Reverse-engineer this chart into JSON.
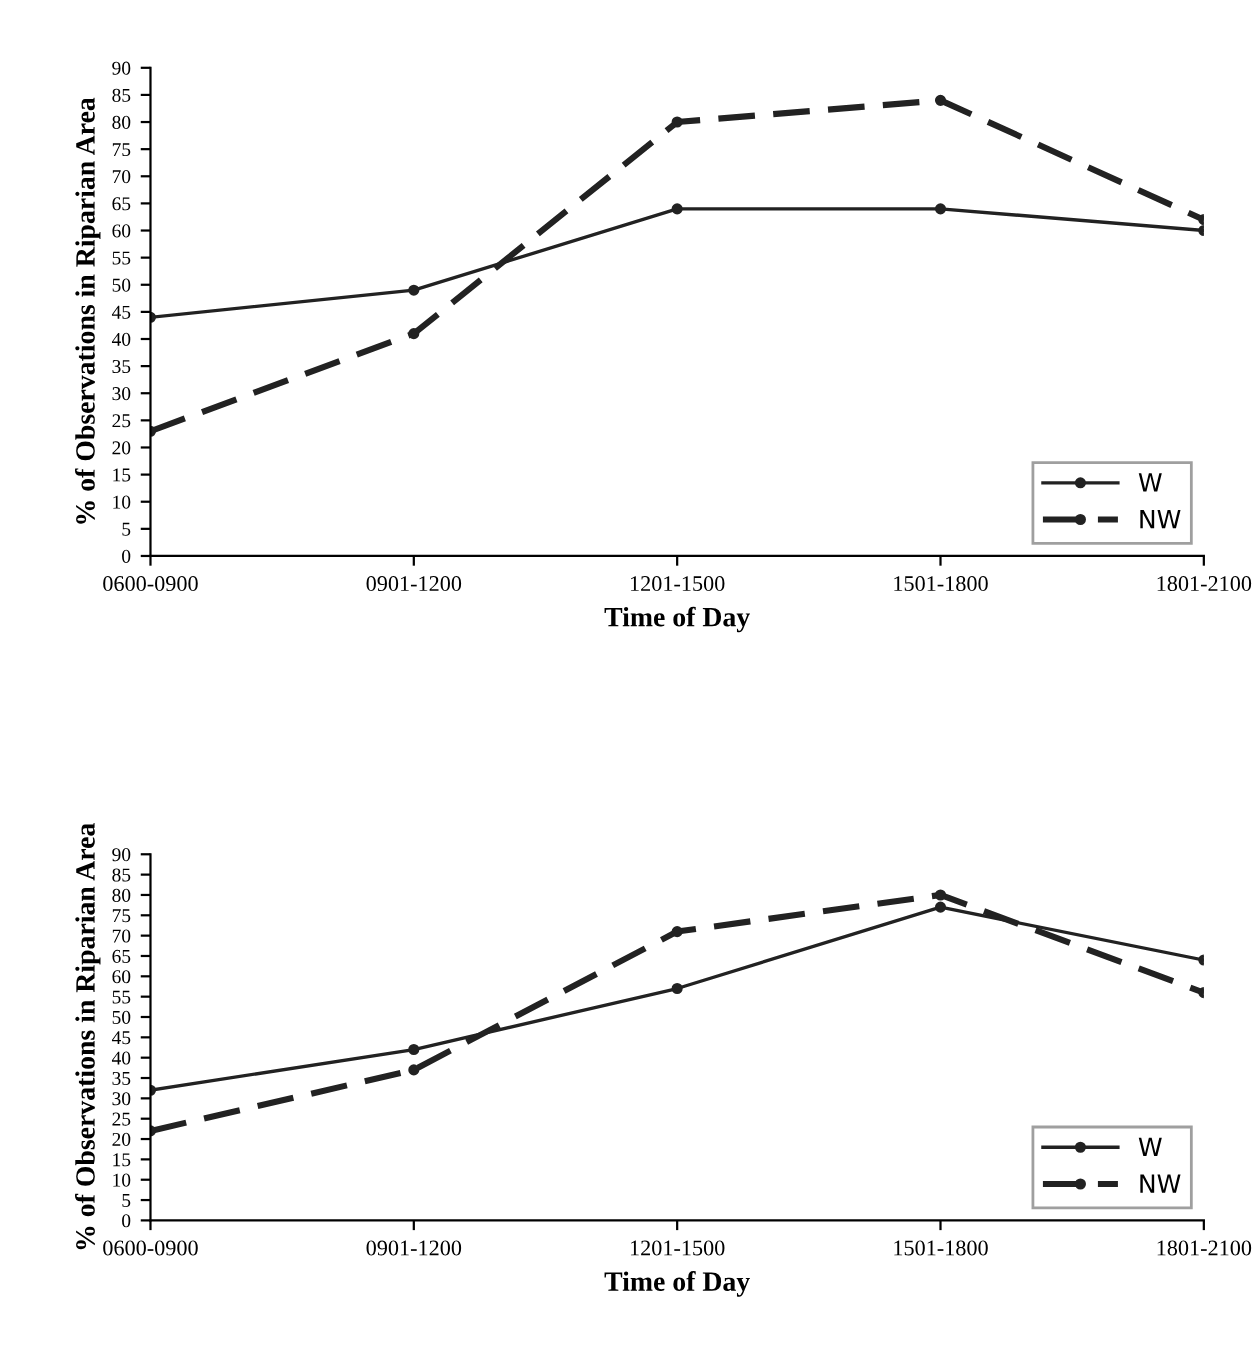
{
  "chart_data": [
    {
      "type": "line",
      "xlabel": "Time of Day",
      "ylabel": "% of Observations in Riparian Area",
      "categories": [
        "0600-0900",
        "0901-1200",
        "1201-1500",
        "1501-1800",
        "1801-2100"
      ],
      "ylim": [
        0,
        90
      ],
      "yticks": [
        0,
        5,
        10,
        15,
        20,
        25,
        30,
        35,
        40,
        45,
        50,
        55,
        60,
        65,
        70,
        75,
        80,
        85,
        90
      ],
      "grid": false,
      "legend": "bottom right",
      "marker": "circle",
      "series": [
        {
          "name": "W",
          "color": "#222222",
          "line_style": "solid",
          "values": [
            44,
            49,
            64,
            64,
            60
          ]
        },
        {
          "name": "NW",
          "color": "#222222",
          "line_style": "dashed",
          "values": [
            23,
            41,
            80,
            84,
            62
          ]
        }
      ]
    },
    {
      "type": "line",
      "xlabel": "Time of Day",
      "ylabel": "% of Observations in Riparian Area",
      "categories": [
        "0600-0900",
        "0901-1200",
        "1201-1500",
        "1501-1800",
        "1801-2100"
      ],
      "ylim": [
        0,
        90
      ],
      "yticks": [
        0,
        5,
        10,
        15,
        20,
        25,
        30,
        35,
        40,
        45,
        50,
        55,
        60,
        65,
        70,
        75,
        80,
        85,
        90
      ],
      "grid": false,
      "legend": "bottom right",
      "marker": "circle",
      "series": [
        {
          "name": "W",
          "color": "#222222",
          "line_style": "solid",
          "values": [
            32,
            42,
            57,
            77,
            64
          ]
        },
        {
          "name": "NW",
          "color": "#222222",
          "line_style": "dashed",
          "values": [
            22,
            37,
            71,
            80,
            56
          ]
        }
      ]
    }
  ]
}
